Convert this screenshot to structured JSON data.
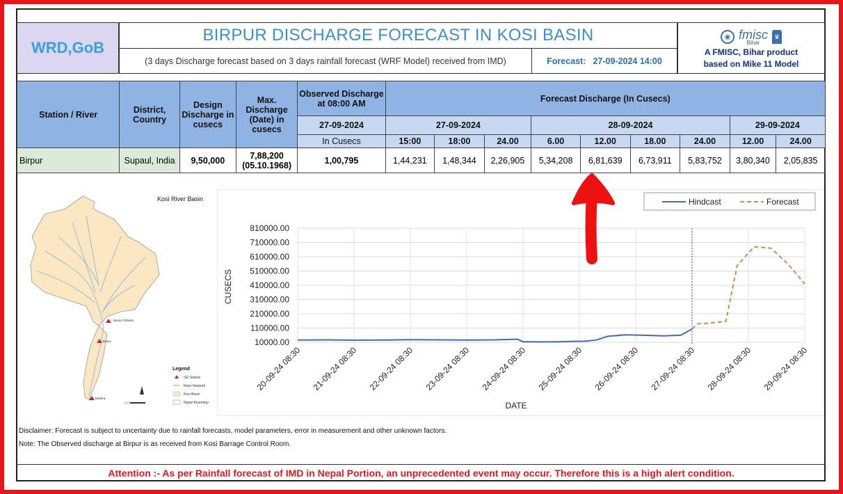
{
  "header": {
    "org": "WRD,GoB",
    "title": "BIRPUR DISCHARGE FORECAST IN KOSI BASIN",
    "subtitle": "(3 days Discharge forecast based on 3 days rainfall forecast (WRF Model) received from IMD)",
    "forecast_label": "Forecast:",
    "forecast_time": "27-09-2024 14:00",
    "logo_text": "fmisc",
    "logo_state": "Bihar",
    "credit_line1": "A FMISC, Bihar product",
    "credit_line2": "based on Mike 11 Model"
  },
  "table": {
    "col_station": "Station / River",
    "col_district": "District, Country",
    "col_design": "Design Discharge in cusecs",
    "col_max": "Max. Discharge (Date) in cusecs",
    "col_observed": "Observed Discharge at 08:00 AM",
    "col_forecast": "Forecast Discharge (In Cusecs)",
    "observed_date": "27-09-2024",
    "observed_unit": "In Cusecs",
    "dates": [
      "27-09-2024",
      "28-09-2024",
      "29-09-2024"
    ],
    "times": [
      "15:00",
      "18:00",
      "24.00",
      "6.00",
      "12.00",
      "18.00",
      "24.00",
      "12.00",
      "24.00"
    ],
    "row": {
      "station": "Birpur",
      "district": "Supaul, India",
      "design": "9,50,000",
      "max_value": "7,88,200",
      "max_date": "(05.10.1968)",
      "observed": "1,00,795",
      "forecast": [
        "1,44,231",
        "1,48,344",
        "2,26,905",
        "5,34,208",
        "6,81,639",
        "6,73,911",
        "5,83,752",
        "3,80,340",
        "2,05,835"
      ]
    }
  },
  "map": {
    "title": "Kosi River Basin",
    "legend_title": "Legend",
    "legend_items": [
      "GD Station",
      "River Network",
      "Kosi Basin",
      "Nepal Boundary"
    ],
    "station_labels": [
      "Baran Chhetra",
      "Birpur",
      "Baltara"
    ]
  },
  "chart_data": {
    "type": "line",
    "xlabel": "DATE",
    "ylabel": "CUSECS",
    "ylim": [
      10000,
      810000
    ],
    "yticks": [
      "810000.00",
      "710000.00",
      "610000.00",
      "510000.00",
      "410000.00",
      "310000.00",
      "210000.00",
      "110000.00",
      "10000.00"
    ],
    "xticks": [
      "20-09-24 08:30",
      "21-09-24 08:30",
      "22-09-24 08:30",
      "23-09-24 08:30",
      "24-09-24 08:30",
      "25-09-24 08:30",
      "26-09-24 08:30",
      "27-09-24 08:30",
      "28-09-24 08:30",
      "29-09-24 08:30"
    ],
    "legend_position": "top-right",
    "grid": true,
    "series": [
      {
        "name": "Hindcast",
        "color": "#3f6ea6",
        "style": "solid",
        "x": [
          0,
          0.5,
          1,
          1.5,
          2,
          2.5,
          3,
          3.5,
          3.9,
          4.0,
          4.3,
          4.6,
          4.9,
          5.1,
          5.3,
          5.5,
          5.8,
          6.1,
          6.5,
          6.8,
          7.0
        ],
        "y": [
          26000,
          27000,
          25000,
          26000,
          28000,
          27000,
          26000,
          27000,
          32000,
          14000,
          13000,
          14000,
          17000,
          18000,
          26000,
          52000,
          62000,
          60000,
          55000,
          60000,
          103000
        ]
      },
      {
        "name": "Forecast",
        "color": "#d98b3e",
        "style": "dashed",
        "x": [
          7.0,
          7.1,
          7.3,
          7.6,
          7.8,
          8.1,
          8.4,
          8.7,
          9.0
        ],
        "y": [
          103000,
          140000,
          144000,
          157000,
          547000,
          680000,
          670000,
          560000,
          420000
        ]
      }
    ]
  },
  "disclaimer": "Disclaimer: Forecast is subject to uncertainty due to rainfall forecasts, model parameters, error in measurement and other unknown factors.",
  "note": "Note: The Observed discharge at Birpur is as received from Kosi Barrage Control Room.",
  "attention": "Attention :- As per Rainfall forecast of IMD in Nepal Portion, an unprecedented event may occur. Therefore this is a high alert condition."
}
